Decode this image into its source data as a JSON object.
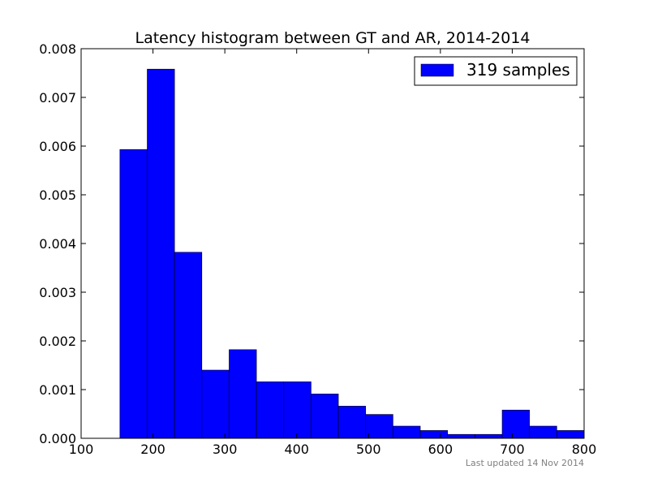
{
  "chart_data": {
    "type": "bar",
    "title": "Latency histogram between GT and AR, 2014-2014",
    "xlabel": "",
    "ylabel": "",
    "xlim": [
      100,
      800
    ],
    "ylim": [
      0,
      0.008
    ],
    "xticks": [
      "100",
      "200",
      "300",
      "400",
      "500",
      "600",
      "700",
      "800"
    ],
    "yticks": [
      "0.000",
      "0.001",
      "0.002",
      "0.003",
      "0.004",
      "0.005",
      "0.006",
      "0.007",
      "0.008"
    ],
    "grid": false,
    "legend": {
      "position": "top-right",
      "entries": [
        "319 samples"
      ]
    },
    "bar_color": "#0000ff",
    "bins": [
      {
        "x0": 154,
        "x1": 192,
        "value": 0.00593
      },
      {
        "x0": 192,
        "x1": 230,
        "value": 0.00758
      },
      {
        "x0": 230,
        "x1": 268,
        "value": 0.00382
      },
      {
        "x0": 268,
        "x1": 306,
        "value": 0.0014
      },
      {
        "x0": 306,
        "x1": 344,
        "value": 0.00182
      },
      {
        "x0": 344,
        "x1": 382,
        "value": 0.00116
      },
      {
        "x0": 382,
        "x1": 420,
        "value": 0.00116
      },
      {
        "x0": 420,
        "x1": 458,
        "value": 0.00091
      },
      {
        "x0": 458,
        "x1": 496,
        "value": 0.00066
      },
      {
        "x0": 496,
        "x1": 534,
        "value": 0.00049
      },
      {
        "x0": 534,
        "x1": 572,
        "value": 0.00025
      },
      {
        "x0": 572,
        "x1": 610,
        "value": 0.00016
      },
      {
        "x0": 610,
        "x1": 648,
        "value": 8e-05
      },
      {
        "x0": 648,
        "x1": 686,
        "value": 8e-05
      },
      {
        "x0": 686,
        "x1": 724,
        "value": 0.00058
      },
      {
        "x0": 724,
        "x1": 762,
        "value": 0.00025
      },
      {
        "x0": 762,
        "x1": 800,
        "value": 0.00016
      }
    ]
  },
  "footnote": "Last updated 14 Nov 2014"
}
